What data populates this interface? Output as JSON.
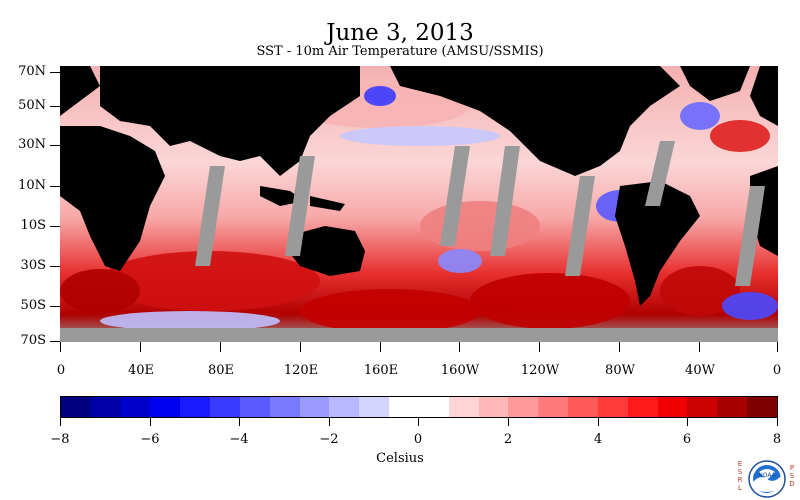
{
  "header": {
    "title": "June 3, 2013",
    "subtitle": "SST - 10m Air Temperature (AMSU/SSMIS)"
  },
  "map": {
    "lat_labels": [
      "70N",
      "50N",
      "30N",
      "10N",
      "10S",
      "30S",
      "50S",
      "70S"
    ],
    "lon_labels": [
      "0",
      "40E",
      "80E",
      "120E",
      "160E",
      "160W",
      "120W",
      "80W",
      "40W",
      "0"
    ],
    "colors": {
      "land": "#000000",
      "missing": "#9a9a9a",
      "ice": "#a0a0a0"
    }
  },
  "colorbar": {
    "labels": [
      "−8",
      "−6",
      "−4",
      "−2",
      "0",
      "2",
      "4",
      "6",
      "8"
    ],
    "unit": "Celsius",
    "colors": [
      "#000080",
      "#0000a8",
      "#0000cc",
      "#0000f0",
      "#1a1aff",
      "#3a3aff",
      "#5a5aff",
      "#7a7aff",
      "#9a9aff",
      "#b8b8ff",
      "#d4d4ff",
      "#ffffff",
      "#ffffff",
      "#ffd4d4",
      "#ffb8b8",
      "#ff9a9a",
      "#ff7a7a",
      "#ff5a5a",
      "#ff3a3a",
      "#ff1a1a",
      "#f00000",
      "#cc0000",
      "#a80000",
      "#800000"
    ]
  },
  "logo": {
    "text": "NOAA",
    "left_letters": [
      "E",
      "S",
      "R",
      "L"
    ],
    "right_letters": [
      "P",
      "S",
      "D"
    ]
  }
}
